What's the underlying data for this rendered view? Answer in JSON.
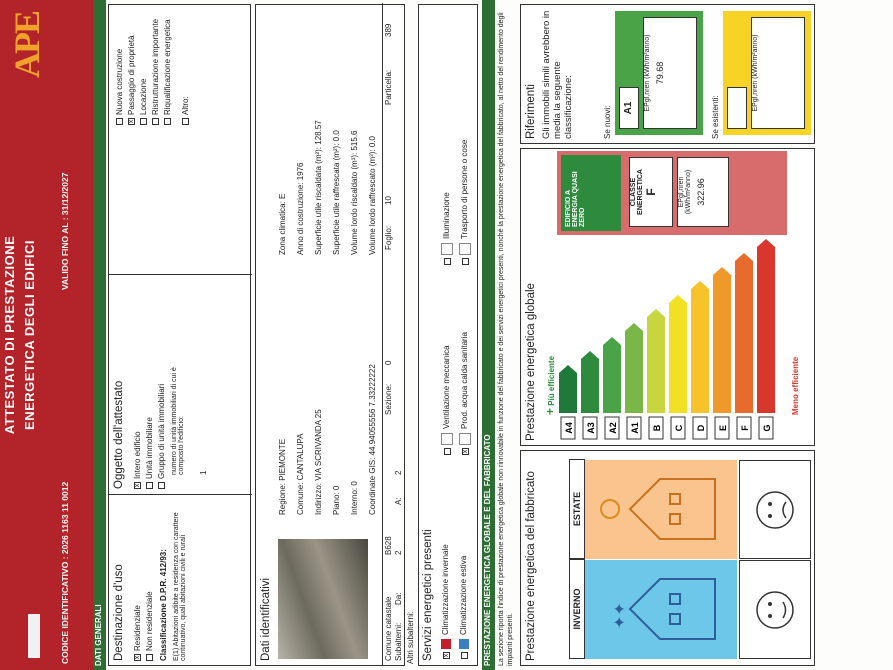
{
  "header": {
    "title_line1": "ATTESTATO DI PRESTAZIONE",
    "title_line2": "ENERGETICA DEGLI EDIFICI",
    "codice": "CODICE IDENTIFICATIVO : 2026 1163 11 0012",
    "validita": "VALIDO FINO AL : 31/12/2027",
    "logo": "APE"
  },
  "sections": {
    "dati_generali": "DATI GENERALI",
    "prestazione": "PRESTAZIONE ENERGETICA GLOBALE E DEL FABBRICATO"
  },
  "destinazione": {
    "title": "Destinazione d'uso",
    "residenziale": "Residenziale",
    "non_residenziale": "Non residenziale",
    "classificazione_label": "Classificazione D.P.R. 412/93:",
    "classificazione_value": "E(1) Abitazioni adibite a residenza con carattere continuativo, quali abitazioni civili e rurali"
  },
  "oggetto": {
    "title": "Oggetto dell'attestato",
    "intero": "Intero edificio",
    "unita": "Unità immobiliare",
    "gruppo": "Gruppo di unità immobiliari",
    "numero_label": "numero di unità immobiliari di cui è composto l'edificio:",
    "numero_value": "1"
  },
  "motivo": {
    "nuova": "Nuova costruzione",
    "passaggio": "Passaggio di proprietà",
    "locazione": "Locazione",
    "ristrutturazione": "Ristrutturazione importante",
    "riqualificazione": "Riqualificazione energetica",
    "altro": "Altro:"
  },
  "identificativi": {
    "title": "Dati identificativi",
    "regione": "Regione: PIEMONTE",
    "comune": "Comune: CANTALUPA",
    "indirizzo": "Indirizzo: VIA SCRIVANDA 25",
    "piano": "Piano: 0",
    "interno": "Interno: 0",
    "coordinate": "Coordinate GIS: 44.94055556 7.33222222",
    "zona": "Zona climatica: E",
    "anno": "Anno di costruzione: 1976",
    "sup_risc": "Superficie utile riscaldata (m²): 128.57",
    "sup_raff": "Superficie utile raffrescata (m²): 0.0",
    "vol_risc": "Volume lordo riscaldato (m³): 515.6",
    "vol_raff": "Volume lordo raffrescato (m³): 0.0",
    "catasto_label": "Comune catastale",
    "catasto_value": "B628",
    "sezione_label": "Sezione:",
    "sezione_value": "0",
    "foglio_label": "Foglio:",
    "foglio_value": "10",
    "particella_label": "Particella:",
    "particella_value": "389",
    "subalterni": "Subalterni:",
    "da": "Da:",
    "a": "A:",
    "da_value": "2",
    "a_value": "2",
    "altri": "Altri subalterni:"
  },
  "servizi": {
    "title": "Servizi energetici presenti",
    "items": [
      "Climatizzazione invernale",
      "Climatizzazione estiva",
      "Ventilazione meccanica",
      "Prod. acqua calda sanitaria",
      "Illuminazione",
      "Trasporto di persone o cose"
    ]
  },
  "intro_text": "La sezione riporta l'indice di prestazione energetica globale non rinnovabile in funzione del fabbricato e dei servizi energetici presenti, nonché la prestazione energetica del fabbricato, al netto del rendimento degli impianti presenti.",
  "fabbricato": {
    "title": "Prestazione energetica del fabbricato",
    "inverno": "INVERNO",
    "estate": "ESTATE"
  },
  "globale": {
    "title": "Prestazione energetica globale",
    "piu_efficiente": "Più efficiente",
    "meno_efficiente": "Meno efficiente",
    "classes": [
      "A4",
      "A3",
      "A2",
      "A1",
      "B",
      "C",
      "D",
      "E",
      "F",
      "G"
    ],
    "class_colors": [
      "#1f7a3a",
      "#2e8b3e",
      "#4aa347",
      "#7ab648",
      "#c7d63f",
      "#f2e024",
      "#f6c32a",
      "#f0992b",
      "#e76b2c",
      "#d8382c"
    ],
    "nzeb": "EDIFICIO A ENERGIA QUASI ZERO",
    "classe_label": "CLASSE ENERGETICA",
    "classe_value": "F",
    "ep_label": "EPgl,nren (kWh/m²anno)",
    "ep_value": "322.96"
  },
  "riferimenti": {
    "title": "Riferimenti",
    "text": "Gli immobili simili avrebbero in media la seguente classificazione:",
    "nuovi_label": "Se nuovi:",
    "nuovi_class": "A1",
    "nuovi_ep_label": "EPgl,nren (kWh/m²anno)",
    "nuovi_ep_value": "79.68",
    "esistenti_label": "Se esistenti:",
    "esistenti_ep_label": "EPgl,nren (kWh/m²anno)",
    "esistenti_ep_value": ""
  }
}
